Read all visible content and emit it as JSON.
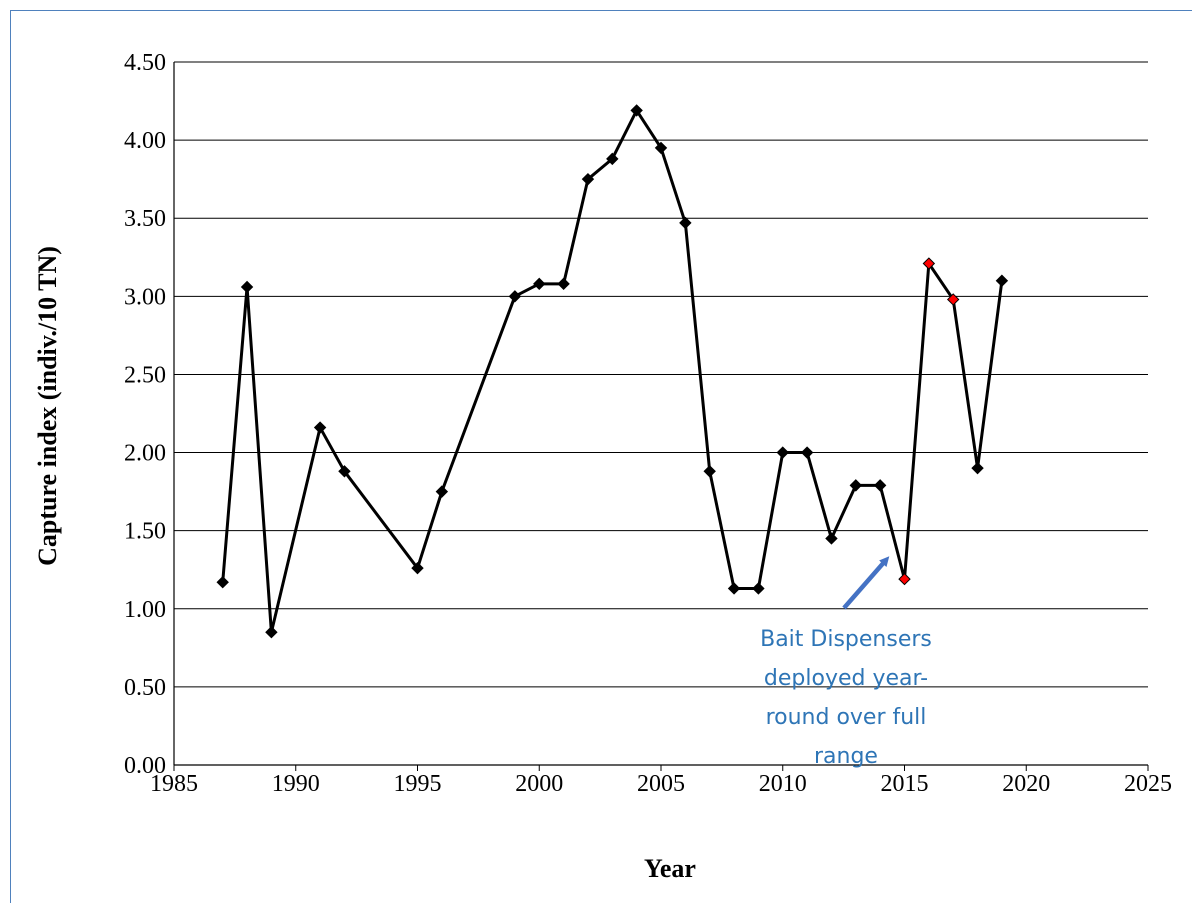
{
  "chart_data": {
    "type": "line",
    "title": "",
    "xlabel": "Year",
    "ylabel": "Capture index (indiv./10 TN)",
    "xlim": [
      1985,
      2025
    ],
    "ylim": [
      0,
      4.5
    ],
    "x_ticks": [
      "1985",
      "1990",
      "1995",
      "2000",
      "2005",
      "2010",
      "2015",
      "2020",
      "2025"
    ],
    "y_ticks": [
      "0.00",
      "0.50",
      "1.00",
      "1.50",
      "2.00",
      "2.50",
      "3.00",
      "3.50",
      "4.00",
      "4.50"
    ],
    "grid": "horizontal",
    "legend": "none",
    "series": [
      {
        "x": [
          1987,
          1988,
          1989,
          1991,
          1992,
          1995,
          1996,
          1999,
          2000,
          2001,
          2002,
          2003,
          2004,
          2005,
          2006,
          2007,
          2008,
          2009,
          2010,
          2011,
          2012,
          2013,
          2014,
          2015,
          2016,
          2017,
          2018,
          2019
        ],
        "y": [
          1.17,
          3.06,
          0.85,
          2.16,
          1.88,
          1.26,
          1.75,
          3.0,
          3.08,
          3.08,
          3.75,
          3.88,
          4.19,
          3.95,
          3.47,
          1.88,
          1.13,
          1.13,
          2.0,
          2.0,
          1.45,
          1.79,
          1.79,
          1.19,
          3.21,
          2.98,
          1.9,
          3.1
        ],
        "line_color": "#000000",
        "marker_color": "#000000",
        "highlight_x": [
          2015,
          2016,
          2017
        ],
        "highlight_color": "#ff0000"
      }
    ],
    "annotations": [
      {
        "text_lines": [
          "Bait Dispensers",
          "deployed year-",
          "round over full",
          "range"
        ],
        "color": "#2e75b6",
        "arrow_color": "#4472c4"
      }
    ]
  }
}
